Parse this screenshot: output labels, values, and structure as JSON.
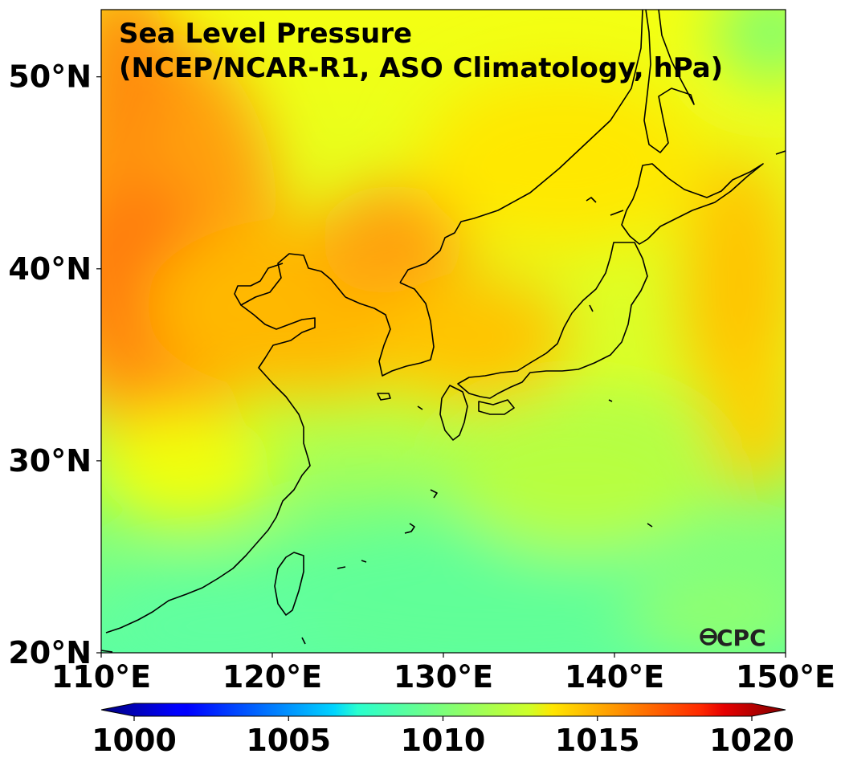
{
  "map": {
    "title_line1": "Sea Level Pressure",
    "title_line2": "(NCEP/NCAR-R1, ASO Climatology, hPa)",
    "logo_text": "CPC",
    "lon_range": [
      110,
      150
    ],
    "lat_range": [
      20,
      53.5
    ],
    "lon_ticks": [
      "110°E",
      "120°E",
      "130°E",
      "140°E",
      "150°E"
    ],
    "lon_tick_values": [
      110,
      120,
      130,
      140,
      150
    ],
    "lat_ticks": [
      "20°N",
      "30°N",
      "40°N",
      "50°N"
    ],
    "lat_tick_values": [
      20,
      30,
      40,
      50
    ],
    "field_colors": {
      "land_high": "#ff7a10",
      "mid": "#ffd400",
      "yellow": "#f2ff10",
      "ocean_low": "#5cff9c",
      "coast_line": "#000000"
    }
  },
  "colorbar": {
    "min": 1000,
    "max": 1020,
    "ticks": [
      "1000",
      "1005",
      "1010",
      "1015",
      "1020"
    ],
    "tick_values": [
      1000,
      1005,
      1010,
      1015,
      1020
    ],
    "extend": "both",
    "colormap": "jet"
  }
}
